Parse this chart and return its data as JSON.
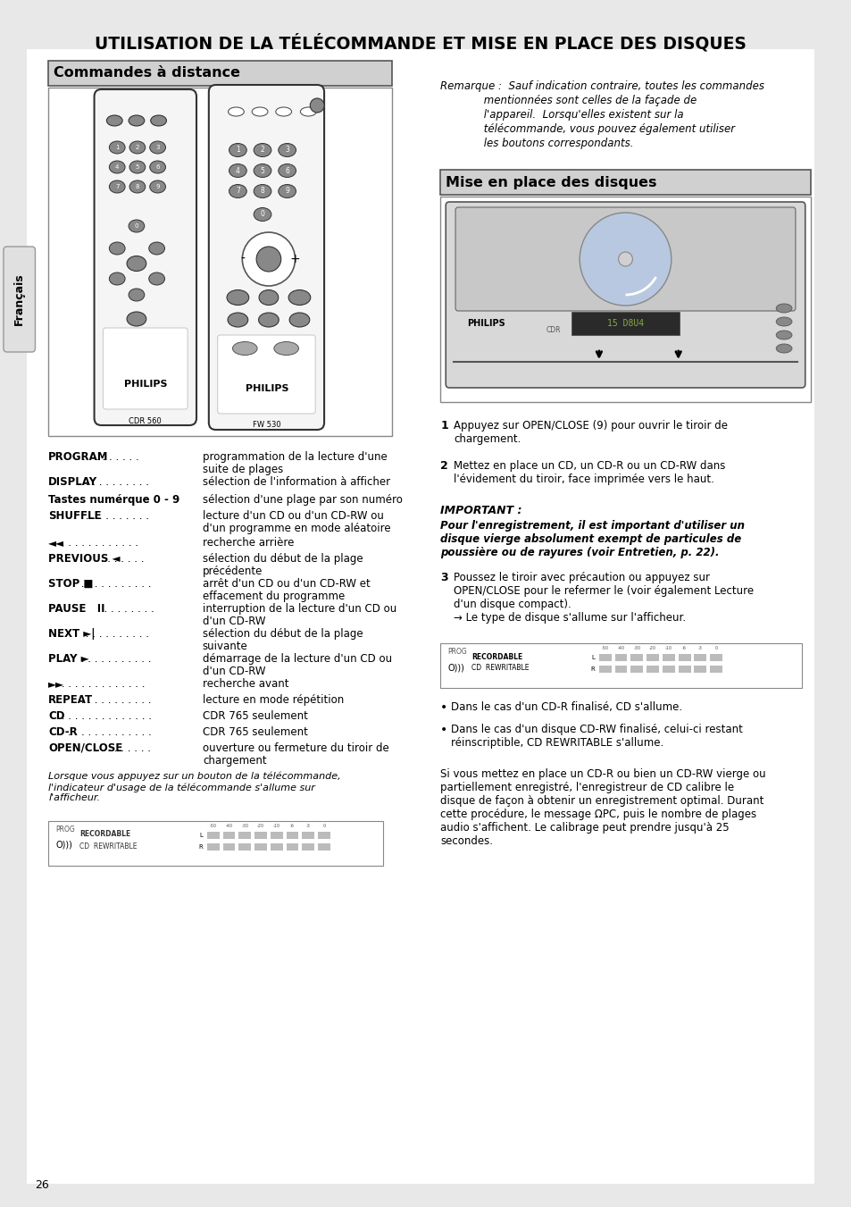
{
  "title": "UTILISATION DE LA TÉLÉCOMMANDE ET MISE EN PLACE DES DISQUES",
  "page_number": "26",
  "background_color": "#e8e8e8",
  "content_background": "#ffffff",
  "section1_header": "Commandes à distance",
  "section2_header": "Mise en place des disques",
  "francais_label": "Français",
  "remark_text": "Remarque :  Sauf indication contraire, toutes les commandes\n             mentionnées sont celles de la façade de\n             l'appareil.  Lorsqu'elles existent sur la\n             télécommande, vous pouvez également utiliser\n             les boutons correspondants.",
  "commands": [
    {
      "bold": "PROGRAM",
      "dots": ". . . . . . . . .",
      "desc": "programmation de la lecture d'une\nsuite de plages"
    },
    {
      "bold": "DISPLAY",
      "dots": " . . . . . . . . . .",
      "desc": "sélection de l'information à afficher"
    },
    {
      "bold": "Tastes numérque 0 - 9",
      "dots": "",
      "desc": "sélection d'une plage par son numéro"
    },
    {
      "bold": "SHUFFLE",
      "dots": " . . . . . . . . . .",
      "desc": "lecture d'un CD ou d'un CD-RW ou\nd'un programme en mode aléatoire"
    },
    {
      "bold": "◄◄",
      "dots": " . . . . . . . . . . . .",
      "desc": "recherche arrière"
    },
    {
      "bold": "PREVIOUS ◄",
      "dots": " . . . . . . .",
      "desc": "sélection du début de la plage\nprécédente"
    },
    {
      "bold": "STOP ■",
      "dots": " . . . . . . . . . . .",
      "desc": "arrêt d'un CD ou d'un CD-RW et\neffacement du programme"
    },
    {
      "bold": "PAUSE   II",
      "dots": ". . . . . . . . .",
      "desc": "interruption de la lecture d'un CD ou\nd'un CD-RW"
    },
    {
      "bold": "NEXT ►|",
      "dots": " . . . . . . . . . .",
      "desc": "sélection du début de la plage\nsuivante"
    },
    {
      "bold": "PLAY ►",
      "dots": " . . . . . . . . . . .",
      "desc": "démarrage de la lecture d'un CD ou\nd'un CD-RW"
    },
    {
      "bold": "►►",
      "dots": " . . . . . . . . . . . . .",
      "desc": "recherche avant"
    },
    {
      "bold": "REPEAT",
      "dots": " . . . . . . . . . . .",
      "desc": "lecture en mode répétition"
    },
    {
      "bold": "CD",
      "dots": " . . . . . . . . . . . . . .",
      "desc": "CDR 765 seulement"
    },
    {
      "bold": "CD-R",
      "dots": ". . . . . . . . . . . . .",
      "desc": "CDR 765 seulement"
    },
    {
      "bold": "OPEN/CLOSE",
      "dots": " . . . . . . . .",
      "desc": "ouverture ou fermeture du tiroir de\nchargement"
    }
  ],
  "italic_note": "Lorsque vous appuyez sur un bouton de la télécommande,\nl'indicateur d'usage de la télécommande s'allume sur\nl'afficheur.",
  "step1_header": "1",
  "step1_text": "Appuyez sur OPEN/CLOSE (9) pour ouvrir le tiroir de\nchargement.",
  "step2_header": "2",
  "step2_text": "Mettez en place un CD, un CD-R ou un CD-RW dans\nl'évidement du tiroir, face imprimée vers le haut.",
  "important_header": "IMPORTANT :",
  "important_text": "Pour l'enregistrement, il est important d'utiliser un\ndisque vierge absolument exempt de particules de\npoussière ou de rayures (voir Entretien, p. 22).",
  "step3_header": "3",
  "step3_text": "Poussez le tiroir avec précaution ou appuyez sur\nOPEN/CLOSE pour le refermer le (voir également Lecture\nd'un disque compact).\n→ Le type de disque s'allume sur l'afficheur.",
  "bullet1": "Dans le cas d'un CD-R finalisé, CD s'allume.",
  "bullet2": "Dans le cas d'un disque CD-RW finalisé, celui-ci restant\nréinscriptible, CD REWRITABLE s'allume.",
  "final_para": "Si vous mettez en place un CD-R ou bien un CD-RW vierge ou\npartiellement enregistré, l'enregistreur de CD calibre le\ndisque de façon à obtenir un enregistrement optimal. Durant\ncette procédure, le message ΩPC, puis le nombre de plages\naudio s'affichent. Le calibrage peut prendre jusqu'à 25\nsecondes."
}
